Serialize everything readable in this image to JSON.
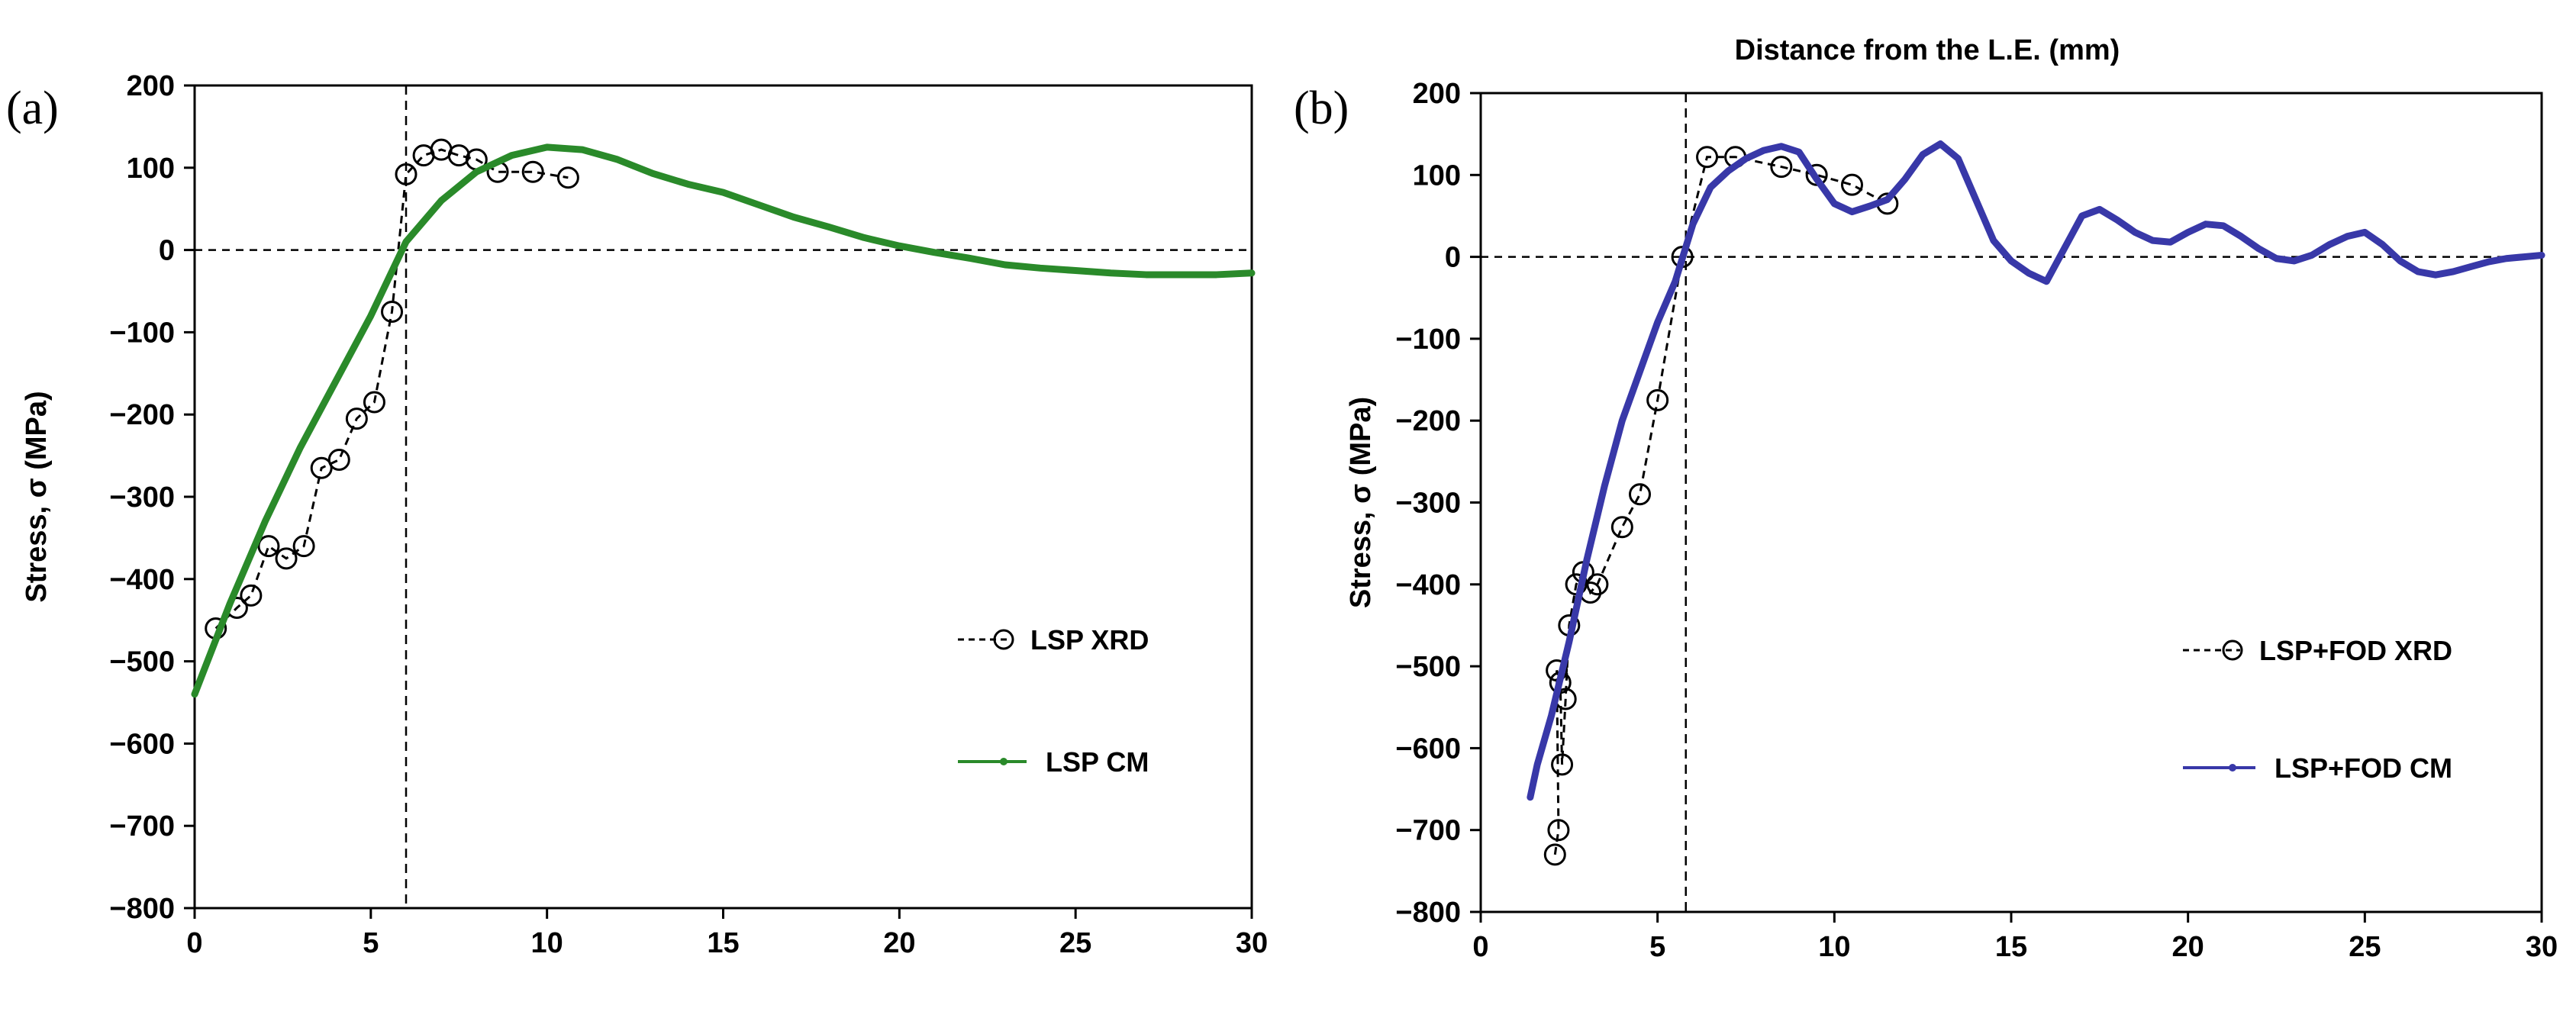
{
  "chart_data": [
    {
      "type": "line",
      "panel_label": "(a)",
      "title": "",
      "xlabel": "",
      "ylabel": "Stress, σ (MPa)",
      "xlim": [
        0,
        30
      ],
      "ylim": [
        -800,
        200
      ],
      "xticks": [
        "0",
        "5",
        "10",
        "15",
        "20",
        "25",
        "30"
      ],
      "yticks": [
        "200",
        "100",
        "0",
        "−100",
        "−200",
        "−300",
        "−400",
        "−500",
        "−600",
        "−700",
        "−800"
      ],
      "reference_lines": {
        "x": 6,
        "y": 0
      },
      "colors": {
        "xrd": "#000000",
        "cm": "#2a8a2a"
      },
      "series": [
        {
          "name": "LSP XRD",
          "style": "dashed-open-circle",
          "x": [
            0.6,
            1.2,
            1.6,
            2.1,
            2.6,
            3.1,
            3.6,
            4.1,
            4.6,
            5.1,
            5.6,
            6.0,
            6.5,
            7.0,
            7.5,
            8.0,
            8.6,
            9.6,
            10.6
          ],
          "y": [
            -460,
            -435,
            -420,
            -360,
            -375,
            -360,
            -265,
            -255,
            -205,
            -185,
            -75,
            92,
            115,
            122,
            115,
            110,
            95,
            95,
            88
          ]
        },
        {
          "name": "LSP CM",
          "style": "solid",
          "x": [
            0,
            1,
            2,
            3,
            4,
            5,
            6,
            7,
            8,
            9,
            10,
            11,
            12,
            13,
            14,
            15,
            16,
            17,
            18,
            19,
            20,
            21,
            22,
            23,
            24,
            25,
            26,
            27,
            28,
            29,
            30
          ],
          "y": [
            -540,
            -430,
            -330,
            -240,
            -160,
            -80,
            10,
            60,
            95,
            115,
            125,
            122,
            110,
            93,
            80,
            70,
            55,
            40,
            28,
            15,
            5,
            -3,
            -10,
            -18,
            -22,
            -25,
            -28,
            -30,
            -30,
            -30,
            -28
          ]
        }
      ]
    },
    {
      "type": "line",
      "panel_label": "(b)",
      "title": "Distance from the L.E. (mm)",
      "xlabel": "",
      "ylabel": "Stress, σ (MPa)",
      "xlim": [
        0,
        30
      ],
      "ylim": [
        -800,
        200
      ],
      "xticks": [
        "0",
        "5",
        "10",
        "15",
        "20",
        "25",
        "30"
      ],
      "yticks": [
        "200",
        "100",
        "0",
        "−100",
        "−200",
        "−300",
        "−400",
        "−500",
        "−600",
        "−700",
        "−800"
      ],
      "reference_lines": {
        "x": 5.8,
        "y": 0
      },
      "colors": {
        "xrd": "#000000",
        "cm": "#3838a8"
      },
      "series": [
        {
          "name": "LSP+FOD XRD",
          "style": "dashed-open-circle",
          "x": [
            2.1,
            2.2,
            2.15,
            2.25,
            2.3,
            2.4,
            2.5,
            2.7,
            2.9,
            3.1,
            3.3,
            4.0,
            4.5,
            5.0,
            5.7,
            6.4,
            7.2,
            8.5,
            9.5,
            10.5,
            11.5
          ],
          "y": [
            -730,
            -700,
            -505,
            -520,
            -620,
            -540,
            -450,
            -400,
            -385,
            -410,
            -400,
            -330,
            -290,
            -175,
            0,
            122,
            122,
            110,
            100,
            88,
            65
          ]
        },
        {
          "name": "LSP+FOD CM",
          "style": "solid",
          "x": [
            1.4,
            1.6,
            2.0,
            2.5,
            3.0,
            3.5,
            4.0,
            4.5,
            5.0,
            5.5,
            6.0,
            6.5,
            7.0,
            7.5,
            8.0,
            8.5,
            9.0,
            9.5,
            10.0,
            10.5,
            11.0,
            11.5,
            12.0,
            12.5,
            13.0,
            13.5,
            14.0,
            14.5,
            15.0,
            15.5,
            16.0,
            16.5,
            17.0,
            17.5,
            18.0,
            18.5,
            19.0,
            19.5,
            20.0,
            20.5,
            21.0,
            21.5,
            22.0,
            22.5,
            23.0,
            23.5,
            24.0,
            24.5,
            25.0,
            25.5,
            26.0,
            26.5,
            27.0,
            27.5,
            28.0,
            28.5,
            29.0,
            29.5,
            30.0
          ],
          "y": [
            -660,
            -620,
            -560,
            -470,
            -370,
            -280,
            -200,
            -140,
            -80,
            -30,
            40,
            85,
            105,
            120,
            130,
            135,
            128,
            95,
            65,
            55,
            62,
            70,
            95,
            125,
            138,
            120,
            70,
            20,
            -5,
            -20,
            -30,
            10,
            50,
            58,
            45,
            30,
            20,
            18,
            30,
            40,
            38,
            25,
            10,
            -2,
            -5,
            2,
            15,
            25,
            30,
            15,
            -5,
            -18,
            -22,
            -18,
            -12,
            -6,
            -2,
            0,
            2
          ]
        }
      ]
    }
  ]
}
